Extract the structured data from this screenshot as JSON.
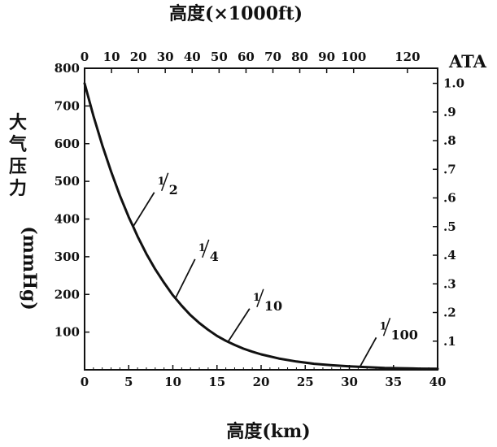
{
  "chart_data": {
    "type": "line",
    "title": "",
    "xlabel": "高度(km)",
    "ylabel": "大气压力(mmHg)",
    "xlim": [
      0,
      40
    ],
    "ylim": [
      0,
      800
    ],
    "x_ticks": [
      "0",
      "5",
      "10",
      "15",
      "20",
      "25",
      "30",
      "35",
      "40"
    ],
    "y_ticks": [
      "100",
      "200",
      "300",
      "400",
      "500",
      "600",
      "700",
      "800"
    ],
    "top_axis": {
      "label": "高度(×1000ft)",
      "ticks": [
        {
          "label": "0",
          "km": 0
        },
        {
          "label": "10",
          "km": 3.05
        },
        {
          "label": "20",
          "km": 6.1
        },
        {
          "label": "30",
          "km": 9.14
        },
        {
          "label": "40",
          "km": 12.19
        },
        {
          "label": "50",
          "km": 15.24
        },
        {
          "label": "60",
          "km": 18.29
        },
        {
          "label": "70",
          "km": 21.34
        },
        {
          "label": "80",
          "km": 24.38
        },
        {
          "label": "90",
          "km": 27.43
        },
        {
          "label": "100",
          "km": 30.48
        },
        {
          "label": "120",
          "km": 36.58
        }
      ]
    },
    "right_axis": {
      "label": "ATA",
      "ticks": [
        {
          "label": ".1",
          "value": 0.1
        },
        {
          "label": ".2",
          "value": 0.2
        },
        {
          "label": ".3",
          "value": 0.3
        },
        {
          "label": ".4",
          "value": 0.4
        },
        {
          "label": ".5",
          "value": 0.5
        },
        {
          "label": ".6",
          "value": 0.6
        },
        {
          "label": ".7",
          "value": 0.7
        },
        {
          "label": ".8",
          "value": 0.8
        },
        {
          "label": ".9",
          "value": 0.9
        },
        {
          "label": "1.0",
          "value": 1.0
        }
      ]
    },
    "series": [
      {
        "x": [
          0,
          1,
          2,
          3,
          4,
          5,
          5.5,
          6,
          7,
          8,
          9,
          10,
          11,
          12,
          13,
          14,
          15,
          16,
          17,
          18,
          19,
          20,
          22,
          24,
          26,
          28,
          30,
          32,
          34,
          36,
          38,
          40
        ],
        "y": [
          760,
          674,
          596,
          526,
          462,
          405,
          380,
          354,
          308,
          267,
          231,
          198,
          170,
          145,
          124,
          106,
          90,
          77,
          66,
          56,
          48,
          41,
          30,
          22,
          16,
          12,
          9,
          7,
          5,
          4,
          3,
          2.5
        ]
      }
    ],
    "annotations": [
      {
        "num": "1",
        "den": "2",
        "point_x": 5.5,
        "point_y": 380
      },
      {
        "num": "1",
        "den": "4",
        "point_x": 10.3,
        "point_y": 190
      },
      {
        "num": "1",
        "den": "10",
        "point_x": 16.3,
        "point_y": 76
      },
      {
        "num": "1",
        "den": "100",
        "point_x": 31.2,
        "point_y": 8
      }
    ],
    "grid": false,
    "colors": {
      "line": "#111111",
      "axis": "#111111",
      "background": "#ffffff"
    }
  },
  "labels": {
    "top_title": "高度(×1000ft)",
    "bottom_title": "高度(km)",
    "left_title_chars": [
      "大",
      "气",
      "压",
      "力"
    ],
    "left_title_unit": "(mmHg)",
    "right_title": "ATA"
  }
}
